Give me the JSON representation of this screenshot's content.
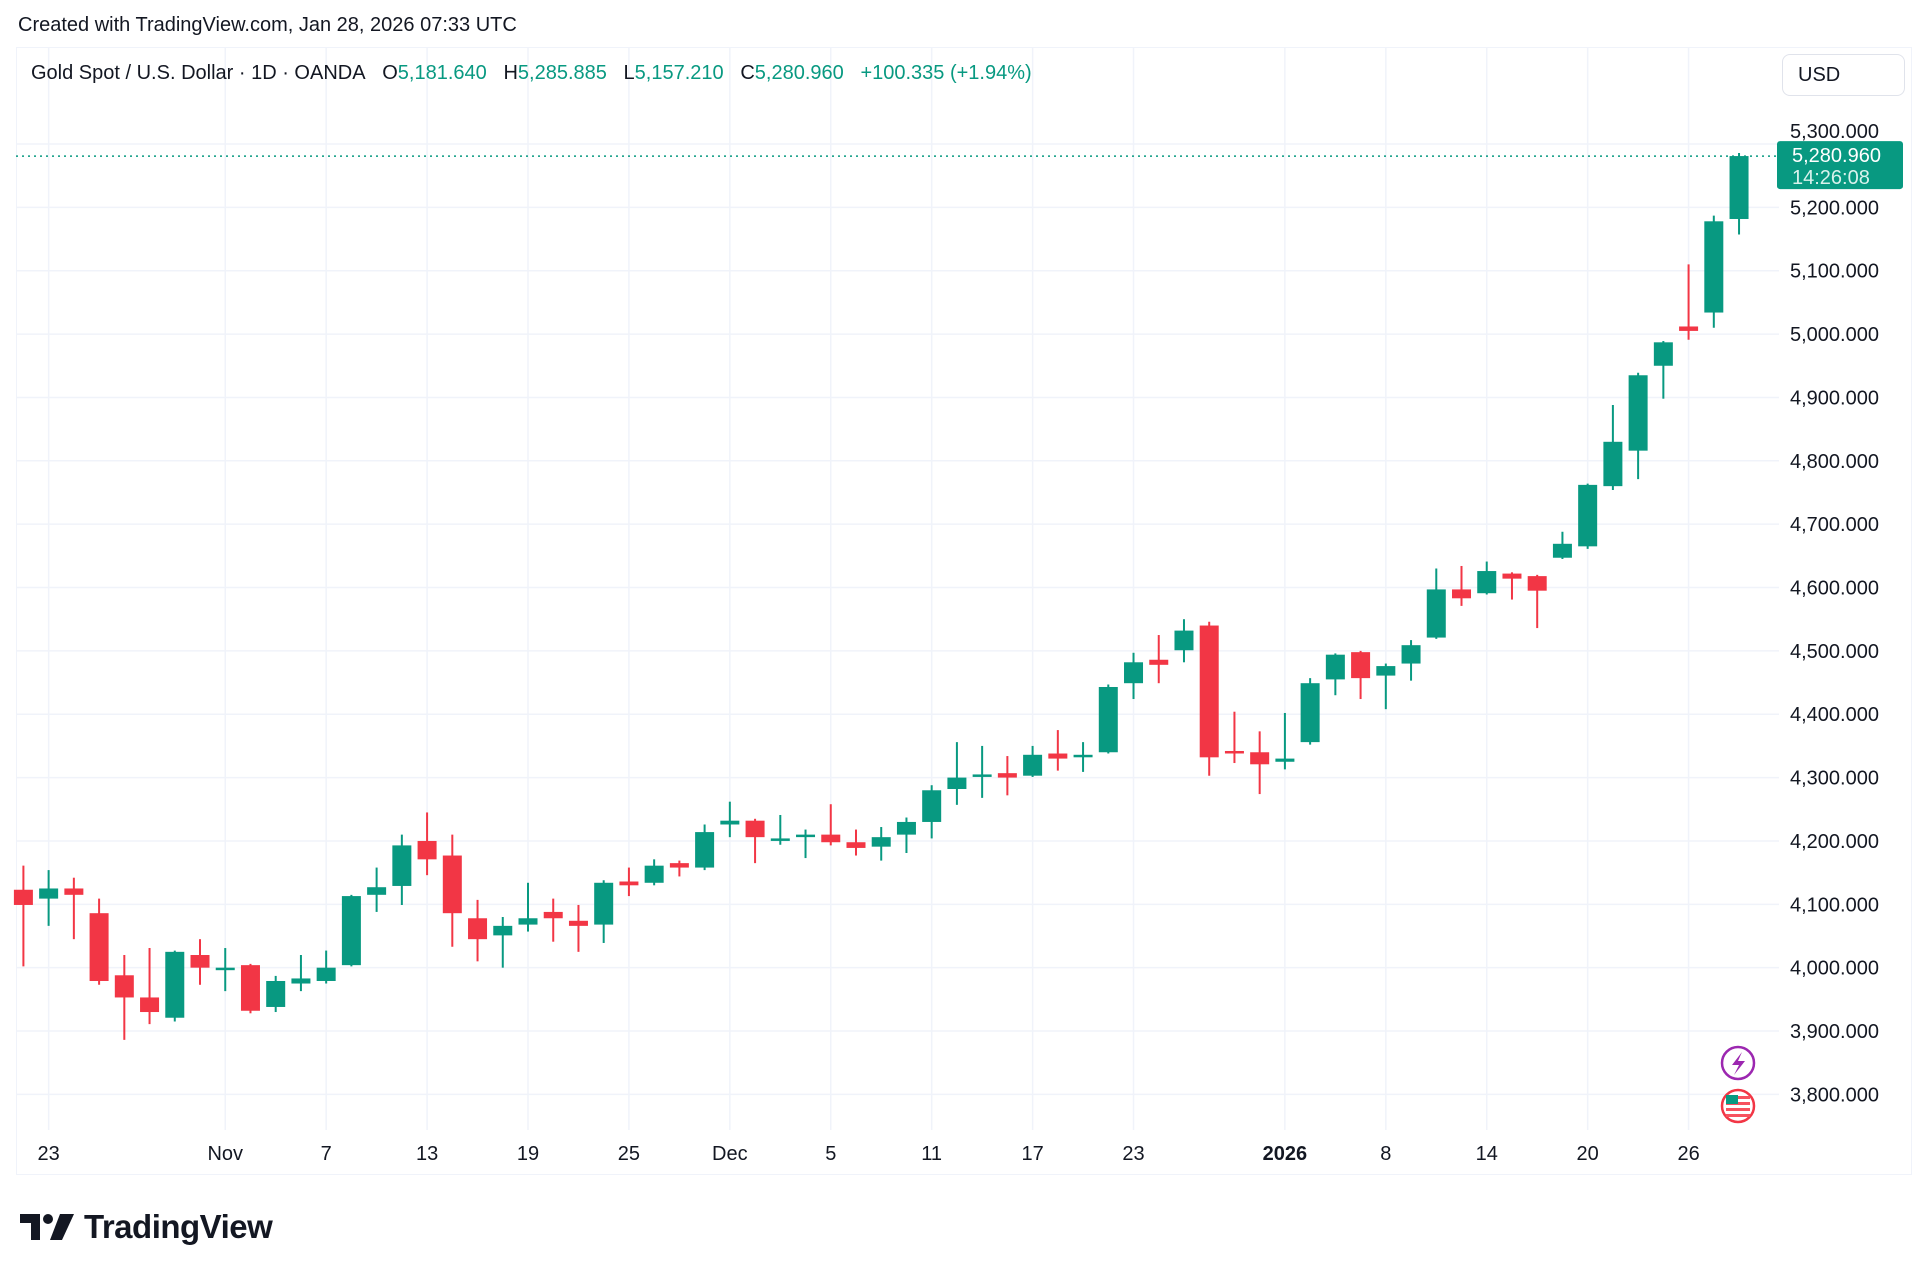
{
  "watermark": "Created with TradingView.com, Jan 28, 2026 07:33 UTC",
  "legend": {
    "symbol": "Gold Spot / U.S. Dollar · 1D · OANDA",
    "o_label": "O",
    "o": "5,181.640",
    "h_label": "H",
    "h": "5,285.885",
    "l_label": "L",
    "l": "5,157.210",
    "c_label": "C",
    "c": "5,280.960",
    "change": "+100.335 (+1.94%)"
  },
  "currency_button": "USD",
  "last_price": {
    "price": "5,280.960",
    "countdown": "14:26:08",
    "value": 5280.96
  },
  "icons": [
    "lightning-icon",
    "us-flag-icon"
  ],
  "logo": "TradingView",
  "colors": {
    "up": "#089981",
    "down": "#F23645",
    "grid": "#f0f3fa",
    "text": "#131722"
  },
  "chart_data": {
    "type": "candlestick",
    "title": "Gold Spot / U.S. Dollar · 1D · OANDA",
    "ylim": [
      3750,
      5330
    ],
    "y_ticks": [
      3800,
      3900,
      4000,
      4100,
      4200,
      4300,
      4400,
      4500,
      4600,
      4700,
      4800,
      4900,
      5000,
      5100,
      5200,
      5300
    ],
    "y_tick_labels": [
      "3,800.000",
      "3,900.000",
      "4,000.000",
      "4,100.000",
      "4,200.000",
      "4,300.000",
      "4,400.000",
      "4,500.000",
      "4,600.000",
      "4,700.000",
      "4,800.000",
      "4,900.000",
      "5,000.000",
      "5,100.000",
      "5,200.000",
      "5,300.000"
    ],
    "x_ticks": [
      {
        "label": "23",
        "date": "2025-10-23"
      },
      {
        "label": "Nov",
        "date": "2025-11-03"
      },
      {
        "label": "7",
        "date": "2025-11-07"
      },
      {
        "label": "13",
        "date": "2025-11-13"
      },
      {
        "label": "19",
        "date": "2025-11-19"
      },
      {
        "label": "25",
        "date": "2025-11-25"
      },
      {
        "label": "Dec",
        "date": "2025-12-01"
      },
      {
        "label": "5",
        "date": "2025-12-05"
      },
      {
        "label": "11",
        "date": "2025-12-11"
      },
      {
        "label": "17",
        "date": "2025-12-17"
      },
      {
        "label": "23",
        "date": "2025-12-23"
      },
      {
        "label": "2026",
        "date": "2026-01-02",
        "bold": true
      },
      {
        "label": "8",
        "date": "2026-01-08"
      },
      {
        "label": "14",
        "date": "2026-01-14"
      },
      {
        "label": "20",
        "date": "2026-01-20"
      },
      {
        "label": "26",
        "date": "2026-01-26"
      }
    ],
    "grid": true,
    "candles_fields": [
      "date",
      "open",
      "high",
      "low",
      "close"
    ],
    "candles": [
      [
        "2025-10-22",
        4123,
        4161,
        4002,
        4099
      ],
      [
        "2025-10-23",
        4109,
        4154,
        4066,
        4125
      ],
      [
        "2025-10-24",
        4125,
        4142,
        4045,
        4115
      ],
      [
        "2025-10-27",
        4086,
        4109,
        3973,
        3979
      ],
      [
        "2025-10-28",
        3988,
        4020,
        3886,
        3953
      ],
      [
        "2025-10-29",
        3953,
        4031,
        3911,
        3930
      ],
      [
        "2025-10-30",
        3921,
        4027,
        3915,
        4025
      ],
      [
        "2025-10-31",
        4020,
        4045,
        3973,
        4000
      ],
      [
        "2025-11-03",
        3997,
        4031,
        3963,
        4000
      ],
      [
        "2025-11-04",
        4004,
        4006,
        3928,
        3932
      ],
      [
        "2025-11-05",
        3938,
        3987,
        3930,
        3979
      ],
      [
        "2025-11-06",
        3975,
        4020,
        3963,
        3983
      ],
      [
        "2025-11-07",
        3979,
        4027,
        3975,
        4000
      ],
      [
        "2025-11-10",
        4004,
        4115,
        4002,
        4113
      ],
      [
        "2025-11-11",
        4115,
        4158,
        4088,
        4127
      ],
      [
        "2025-11-12",
        4129,
        4210,
        4099,
        4193
      ],
      [
        "2025-11-13",
        4200,
        4245,
        4146,
        4171
      ],
      [
        "2025-11-14",
        4177,
        4210,
        4033,
        4086
      ],
      [
        "2025-11-17",
        4078,
        4107,
        4010,
        4045
      ],
      [
        "2025-11-18",
        4051,
        4080,
        4000,
        4066
      ],
      [
        "2025-11-19",
        4068,
        4134,
        4057,
        4078
      ],
      [
        "2025-11-20",
        4088,
        4109,
        4041,
        4078
      ],
      [
        "2025-11-21",
        4074,
        4099,
        4025,
        4066
      ],
      [
        "2025-11-24",
        4068,
        4138,
        4039,
        4134
      ],
      [
        "2025-11-25",
        4136,
        4158,
        4113,
        4130
      ],
      [
        "2025-11-26",
        4134,
        4171,
        4130,
        4161
      ],
      [
        "2025-11-27",
        4165,
        4169,
        4144,
        4158
      ],
      [
        "2025-11-28",
        4158,
        4226,
        4154,
        4214
      ],
      [
        "2025-12-01",
        4226,
        4262,
        4206,
        4232
      ],
      [
        "2025-12-02",
        4232,
        4235,
        4165,
        4206
      ],
      [
        "2025-12-03",
        4202,
        4241,
        4194,
        4204
      ],
      [
        "2025-12-04",
        4208,
        4218,
        4173,
        4210
      ],
      [
        "2025-12-05",
        4210,
        4258,
        4193,
        4198
      ],
      [
        "2025-12-08",
        4198,
        4218,
        4177,
        4189
      ],
      [
        "2025-12-09",
        4191,
        4222,
        4169,
        4206
      ],
      [
        "2025-12-10",
        4210,
        4237,
        4181,
        4230
      ],
      [
        "2025-12-11",
        4230,
        4288,
        4204,
        4280
      ],
      [
        "2025-12-12",
        4282,
        4356,
        4257,
        4300
      ],
      [
        "2025-12-15",
        4303,
        4350,
        4268,
        4305
      ],
      [
        "2025-12-16",
        4307,
        4334,
        4272,
        4300
      ],
      [
        "2025-12-17",
        4303,
        4350,
        4301,
        4336
      ],
      [
        "2025-12-18",
        4338,
        4375,
        4311,
        4330
      ],
      [
        "2025-12-19",
        4334,
        4356,
        4309,
        4336
      ],
      [
        "2025-12-22",
        4340,
        4447,
        4338,
        4443
      ],
      [
        "2025-12-23",
        4449,
        4497,
        4424,
        4482
      ],
      [
        "2025-12-24",
        4486,
        4525,
        4449,
        4478
      ],
      [
        "2025-12-26",
        4501,
        4550,
        4482,
        4532
      ],
      [
        "2025-12-29",
        4540,
        4546,
        4303,
        4332
      ],
      [
        "2025-12-30",
        4342,
        4404,
        4323,
        4340
      ],
      [
        "2025-12-31",
        4340,
        4373,
        4274,
        4321
      ],
      [
        "2026-01-02",
        4325,
        4402,
        4313,
        4330
      ],
      [
        "2026-01-05",
        4356,
        4457,
        4352,
        4449
      ],
      [
        "2026-01-06",
        4455,
        4496,
        4430,
        4494
      ],
      [
        "2026-01-07",
        4498,
        4500,
        4424,
        4457
      ],
      [
        "2026-01-08",
        4461,
        4480,
        4408,
        4476
      ],
      [
        "2026-01-09",
        4480,
        4517,
        4453,
        4509
      ],
      [
        "2026-01-12",
        4521,
        4630,
        4519,
        4597
      ],
      [
        "2026-01-13",
        4597,
        4634,
        4571,
        4583
      ],
      [
        "2026-01-14",
        4591,
        4641,
        4589,
        4626
      ],
      [
        "2026-01-15",
        4622,
        4624,
        4581,
        4614
      ],
      [
        "2026-01-16",
        4618,
        4620,
        4536,
        4595
      ],
      [
        "2026-01-19",
        4647,
        4688,
        4645,
        4669
      ],
      [
        "2026-01-20",
        4665,
        4764,
        4661,
        4762
      ],
      [
        "2026-01-21",
        4760,
        4888,
        4754,
        4830
      ],
      [
        "2026-01-22",
        4816,
        4939,
        4771,
        4935
      ],
      [
        "2026-01-23",
        4950,
        4989,
        4898,
        4987
      ],
      [
        "2026-01-26",
        5012,
        5110,
        4991,
        5005
      ],
      [
        "2026-01-27",
        5034,
        5187,
        5010,
        5178
      ],
      [
        "2026-01-28",
        5181.64,
        5285.885,
        5157.21,
        5280.96
      ]
    ]
  }
}
